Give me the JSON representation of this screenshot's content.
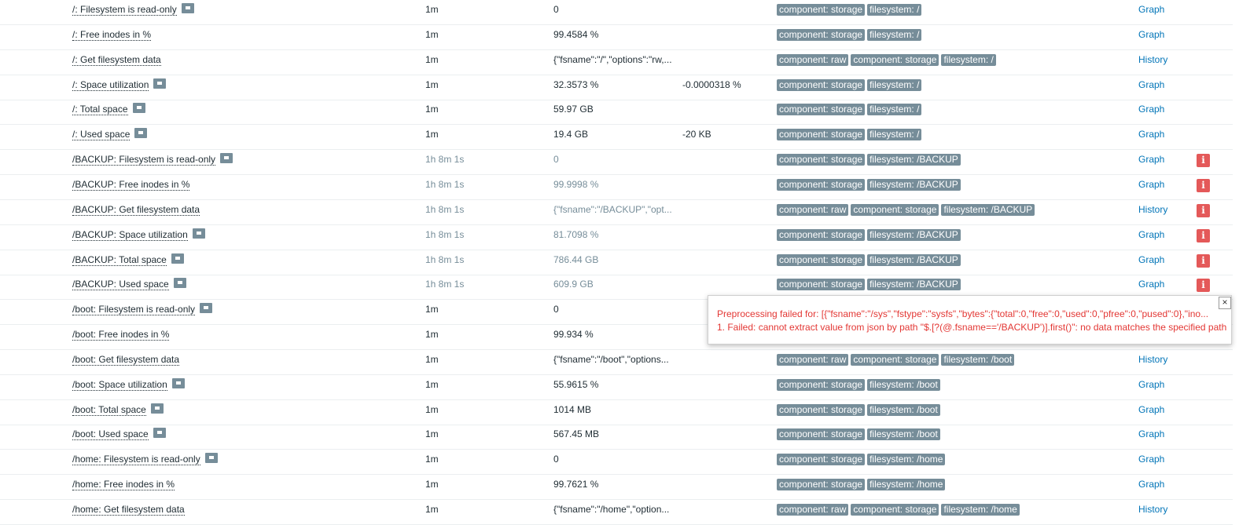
{
  "rows": [
    {
      "name": "/: Filesystem is read-only",
      "help": true,
      "interval": "1m",
      "value": "0",
      "tags": [
        "component: storage",
        "filesystem: /"
      ],
      "link": "Graph"
    },
    {
      "name": "/: Free inodes in %",
      "interval": "1m",
      "value": "99.4584 %",
      "tags": [
        "component: storage",
        "filesystem: /"
      ],
      "link": "Graph"
    },
    {
      "name": "/: Get filesystem data",
      "interval": "1m",
      "value": "{\"fsname\":\"/\",\"options\":\"rw,...",
      "tags": [
        "component: raw",
        "component: storage",
        "filesystem: /"
      ],
      "link": "History"
    },
    {
      "name": "/: Space utilization",
      "help": true,
      "interval": "1m",
      "value": "32.3573 %",
      "change": "-0.0000318 %",
      "tags": [
        "component: storage",
        "filesystem: /"
      ],
      "link": "Graph"
    },
    {
      "name": "/: Total space",
      "help": true,
      "interval": "1m",
      "value": "59.97 GB",
      "tags": [
        "component: storage",
        "filesystem: /"
      ],
      "link": "Graph"
    },
    {
      "name": "/: Used space",
      "help": true,
      "interval": "1m",
      "value": "19.4 GB",
      "change": "-20 KB",
      "tags": [
        "component: storage",
        "filesystem: /"
      ],
      "link": "Graph"
    },
    {
      "name": "/BACKUP: Filesystem is read-only",
      "help": true,
      "interval": "1h 8m 1s",
      "value": "0",
      "tags": [
        "component: storage",
        "filesystem: /BACKUP"
      ],
      "link": "Graph",
      "error": true
    },
    {
      "name": "/BACKUP: Free inodes in %",
      "interval": "1h 8m 1s",
      "value": "99.9998 %",
      "tags": [
        "component: storage",
        "filesystem: /BACKUP"
      ],
      "link": "Graph",
      "error": true
    },
    {
      "name": "/BACKUP: Get filesystem data",
      "interval": "1h 8m 1s",
      "value": "{\"fsname\":\"/BACKUP\",\"opt...",
      "tags": [
        "component: raw",
        "component: storage",
        "filesystem: /BACKUP"
      ],
      "link": "History",
      "error": true
    },
    {
      "name": "/BACKUP: Space utilization",
      "help": true,
      "interval": "1h 8m 1s",
      "value": "81.7098 %",
      "tags": [
        "component: storage",
        "filesystem: /BACKUP"
      ],
      "link": "Graph",
      "error": true
    },
    {
      "name": "/BACKUP: Total space",
      "help": true,
      "interval": "1h 8m 1s",
      "value": "786.44 GB",
      "tags": [
        "component: storage",
        "filesystem: /BACKUP"
      ],
      "link": "Graph",
      "error": true
    },
    {
      "name": "/BACKUP: Used space",
      "help": true,
      "interval": "1h 8m 1s",
      "value": "609.9 GB",
      "tags": [
        "component: storage",
        "filesystem: /BACKUP"
      ],
      "link": "Graph",
      "error": true
    },
    {
      "name": "/boot: Filesystem is read-only",
      "help": true,
      "interval": "1m",
      "value": "0"
    },
    {
      "name": "/boot: Free inodes in %",
      "interval": "1m",
      "value": "99.934 %"
    },
    {
      "name": "/boot: Get filesystem data",
      "interval": "1m",
      "value": "{\"fsname\":\"/boot\",\"options...",
      "tags": [
        "component: raw",
        "component: storage",
        "filesystem: /boot"
      ],
      "link": "History"
    },
    {
      "name": "/boot: Space utilization",
      "help": true,
      "interval": "1m",
      "value": "55.9615 %",
      "tags": [
        "component: storage",
        "filesystem: /boot"
      ],
      "link": "Graph"
    },
    {
      "name": "/boot: Total space",
      "help": true,
      "interval": "1m",
      "value": "1014 MB",
      "tags": [
        "component: storage",
        "filesystem: /boot"
      ],
      "link": "Graph"
    },
    {
      "name": "/boot: Used space",
      "help": true,
      "interval": "1m",
      "value": "567.45 MB",
      "tags": [
        "component: storage",
        "filesystem: /boot"
      ],
      "link": "Graph"
    },
    {
      "name": "/home: Filesystem is read-only",
      "help": true,
      "interval": "1m",
      "value": "0",
      "tags": [
        "component: storage",
        "filesystem: /home"
      ],
      "link": "Graph"
    },
    {
      "name": "/home: Free inodes in %",
      "interval": "1m",
      "value": "99.7621 %",
      "tags": [
        "component: storage",
        "filesystem: /home"
      ],
      "link": "Graph"
    },
    {
      "name": "/home: Get filesystem data",
      "interval": "1m",
      "value": "{\"fsname\":\"/home\",\"option...",
      "tags": [
        "component: raw",
        "component: storage",
        "filesystem: /home"
      ],
      "link": "History"
    }
  ],
  "popup": {
    "lines": [
      "Preprocessing failed for: [{\"fsname\":\"/sys\",\"fstype\":\"sysfs\",\"bytes\":{\"total\":0,\"free\":0,\"used\":0,\"pfree\":0,\"pused\":0},\"ino...",
      "1. Failed: cannot extract value from json by path \"$.[?(@.fsname=='/BACKUP')].first()\": no data matches the specified path"
    ]
  }
}
